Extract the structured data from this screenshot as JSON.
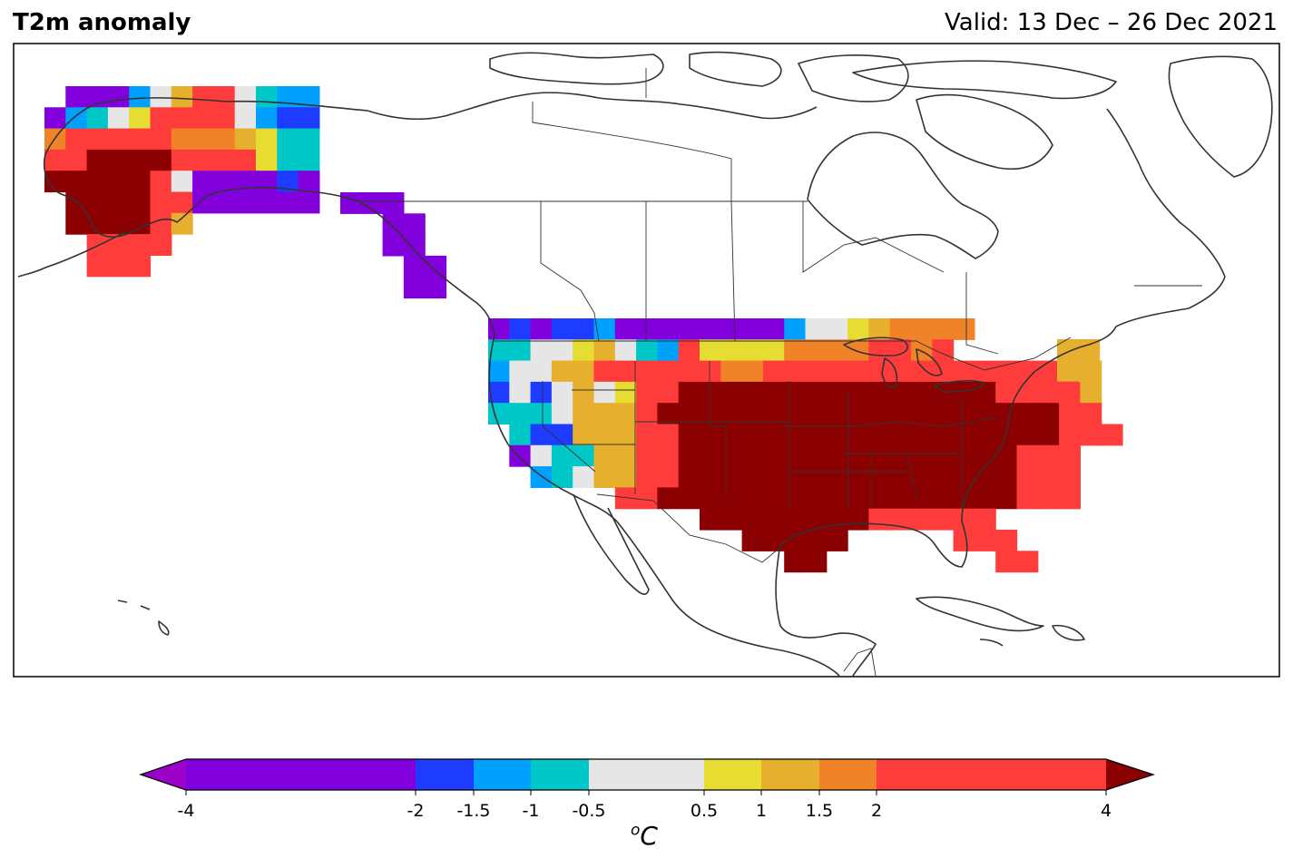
{
  "header": {
    "title": "T2m anomaly",
    "valid": "Valid: 13 Dec – 26 Dec 2021"
  },
  "colorbar": {
    "unit_base": "C",
    "unit_sup": "o",
    "extend_low_color": "#9b00c8",
    "extend_high_color": "#8b0000",
    "ticks": [
      "-4",
      "-2",
      "-1.5",
      "-1",
      "-0.5",
      "0.5",
      "1",
      "1.5",
      "2",
      "4"
    ],
    "segments": [
      {
        "from": -4,
        "to": -2,
        "color": "#8200dc"
      },
      {
        "from": -2,
        "to": -1.5,
        "color": "#1e3cff"
      },
      {
        "from": -1.5,
        "to": -1,
        "color": "#00a0ff"
      },
      {
        "from": -1,
        "to": -0.5,
        "color": "#00c8c8"
      },
      {
        "from": -0.5,
        "to": 0.5,
        "color": "#e6e6e6"
      },
      {
        "from": 0.5,
        "to": 1,
        "color": "#e6dc32"
      },
      {
        "from": 1,
        "to": 1.5,
        "color": "#e6af2d"
      },
      {
        "from": 1.5,
        "to": 2,
        "color": "#f08228"
      },
      {
        "from": 2,
        "to": 4,
        "color": "#ff3c3c"
      }
    ]
  },
  "map": {
    "coastline_color": "#333333"
  }
}
